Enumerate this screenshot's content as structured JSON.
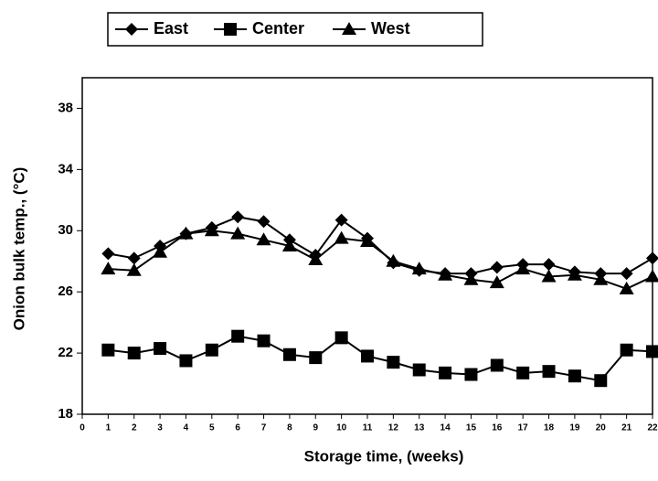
{
  "chart_data": {
    "type": "line",
    "xlabel": "Storage time, (weeks)",
    "ylabel": "Onion bulk temp., (°C)",
    "x": [
      1,
      2,
      3,
      4,
      5,
      6,
      7,
      8,
      9,
      10,
      11,
      12,
      13,
      14,
      15,
      16,
      17,
      18,
      19,
      20,
      21,
      22
    ],
    "series": [
      {
        "name": "East",
        "color": "#000000",
        "marker": "diamond",
        "values": [
          28.5,
          28.2,
          29,
          29.8,
          30.2,
          30.9,
          30.6,
          29.4,
          28.4,
          30.7,
          29.5,
          27.9,
          27.4,
          27.2,
          27.2,
          27.6,
          27.8,
          27.8,
          27.3,
          27.2,
          27.2,
          28.2
        ]
      },
      {
        "name": "Center",
        "color": "#000000",
        "marker": "square",
        "values": [
          22.2,
          22.0,
          22.3,
          21.5,
          22.2,
          23.1,
          22.8,
          21.9,
          21.7,
          23.0,
          21.8,
          21.4,
          20.9,
          20.7,
          20.6,
          21.2,
          20.7,
          20.8,
          20.5,
          20.2,
          22.2,
          22.1
        ]
      },
      {
        "name": "West",
        "color": "#000000",
        "marker": "triangle",
        "values": [
          27.5,
          27.4,
          28.6,
          29.8,
          30.0,
          29.8,
          29.4,
          29.0,
          28.1,
          29.5,
          29.3,
          28.0,
          27.5,
          27.1,
          26.8,
          26.6,
          27.5,
          27.0,
          27.1,
          26.8,
          26.2,
          27.0
        ]
      }
    ],
    "xlim": [
      0,
      22
    ],
    "xticks": [
      0,
      1,
      2,
      3,
      4,
      5,
      6,
      7,
      8,
      9,
      10,
      11,
      12,
      13,
      14,
      15,
      16,
      17,
      18,
      19,
      20,
      21,
      22
    ],
    "ylim": [
      18,
      40
    ],
    "yticks": [
      18,
      22,
      26,
      30,
      34,
      38
    ],
    "legend": "top"
  }
}
